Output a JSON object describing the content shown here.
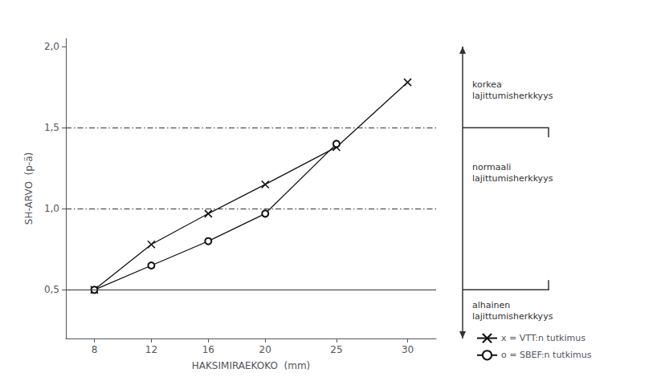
{
  "chart_data": {
    "type": "line",
    "xlabel": "HAKSIMIRAEKOKO  (mm)",
    "ylabel": "SH-ARVO  (p-ä)",
    "xlim": [
      6,
      32
    ],
    "ylim": [
      0.2,
      2.05
    ],
    "xticks": [
      8,
      12,
      16,
      20,
      25,
      30
    ],
    "yticks": [
      {
        "value": 0.5,
        "label": "0,5"
      },
      {
        "value": 1.0,
        "label": "1,0"
      },
      {
        "value": 1.5,
        "label": "1,5"
      },
      {
        "value": 2.0,
        "label": "2,0"
      }
    ],
    "grid": false,
    "series": [
      {
        "name": "x = VTT:n tutkimus",
        "color": "#111111",
        "marker": "x",
        "x": [
          8,
          12,
          16,
          20,
          25,
          30
        ],
        "values": [
          0.5,
          0.78,
          0.97,
          1.15,
          1.38,
          1.78
        ]
      },
      {
        "name": "o = SBEF:n tutkimus",
        "color": "#111111",
        "marker": "o",
        "x": [
          8,
          12,
          16,
          20,
          25
        ],
        "values": [
          0.5,
          0.65,
          0.8,
          0.97,
          1.4
        ]
      }
    ],
    "hlines": [
      {
        "y": 0.5,
        "line_style": "solid"
      },
      {
        "y": 1.0,
        "line_style": "dashdot"
      },
      {
        "y": 1.5,
        "line_style": "dashdot"
      }
    ],
    "annotations": [
      {
        "text": "korkea\nlajittumisherkkyys",
        "y": 1.73
      },
      {
        "text": "normaali\nlajittumisherkkyys",
        "y": 1.22
      },
      {
        "text": "alhainen\nlajittumisherkkyys",
        "y": 0.37
      }
    ]
  }
}
